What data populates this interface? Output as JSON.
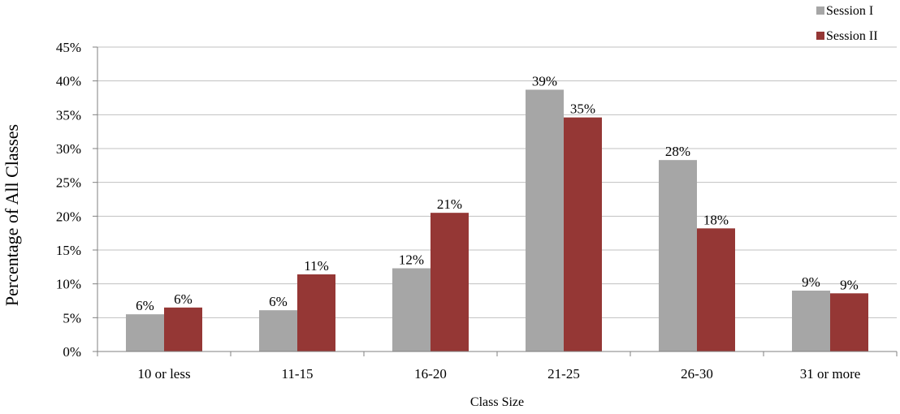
{
  "chart_data": {
    "type": "bar",
    "title": "",
    "xlabel": "Class Size",
    "ylabel": "Percentage of All Classes",
    "categories": [
      "10 or less",
      "11-15",
      "16-20",
      "21-25",
      "26-30",
      "31 or more"
    ],
    "ylim": [
      0,
      45
    ],
    "yticks": [
      0,
      5,
      10,
      15,
      20,
      25,
      30,
      35,
      40,
      45
    ],
    "ytick_labels": [
      "0%",
      "5%",
      "10%",
      "15%",
      "20%",
      "25%",
      "30%",
      "35%",
      "40%",
      "45%"
    ],
    "grid": true,
    "legend_position": "top-right",
    "series": [
      {
        "name": "Session I",
        "color": "#a6a6a6",
        "values": [
          5.5,
          6.1,
          12.3,
          38.7,
          28.3,
          9.0
        ],
        "labels": [
          "6%",
          "6%",
          "12%",
          "39%",
          "28%",
          "9%"
        ]
      },
      {
        "name": "Session II",
        "color": "#953735",
        "values": [
          6.5,
          11.4,
          20.5,
          34.6,
          18.2,
          8.6
        ],
        "labels": [
          "6%",
          "11%",
          "21%",
          "35%",
          "18%",
          "9%"
        ]
      }
    ]
  }
}
